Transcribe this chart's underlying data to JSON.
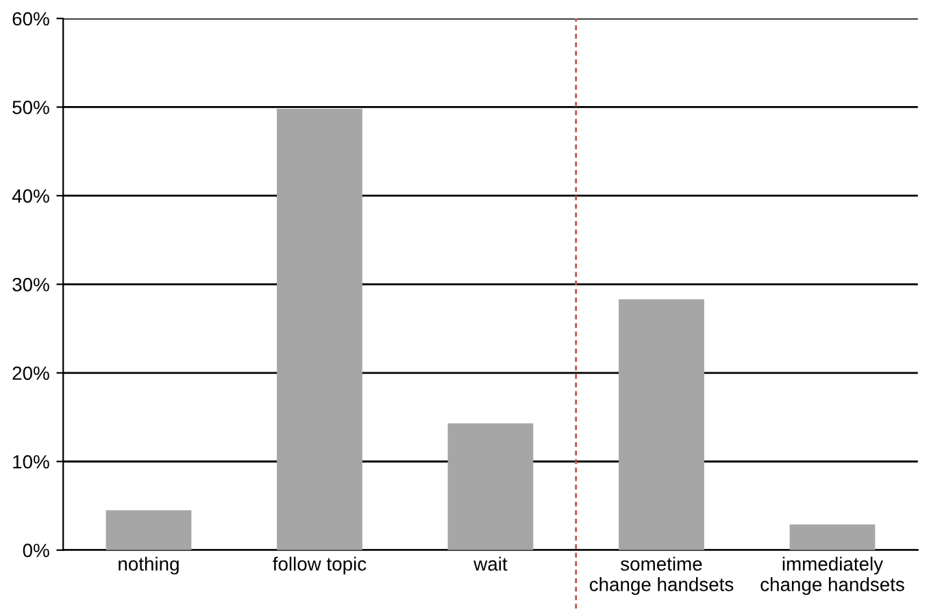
{
  "chart_data": {
    "type": "bar",
    "categories": [
      "nothing",
      "follow topic",
      "wait",
      "sometime\nchange handsets",
      "immediately\nchange handsets"
    ],
    "values": [
      4.5,
      49.8,
      14.3,
      28.3,
      2.9
    ],
    "color": "#a6a6a6",
    "ylim": [
      0,
      60
    ],
    "yticks": [
      {
        "value": 0,
        "label": "0%"
      },
      {
        "value": 10,
        "label": "10%"
      },
      {
        "value": 20,
        "label": "20%"
      },
      {
        "value": 30,
        "label": "30%"
      },
      {
        "value": 40,
        "label": "40%"
      },
      {
        "value": 50,
        "label": "50%"
      },
      {
        "value": 60,
        "label": "60%"
      }
    ],
    "grid": "y",
    "legend": false
  }
}
